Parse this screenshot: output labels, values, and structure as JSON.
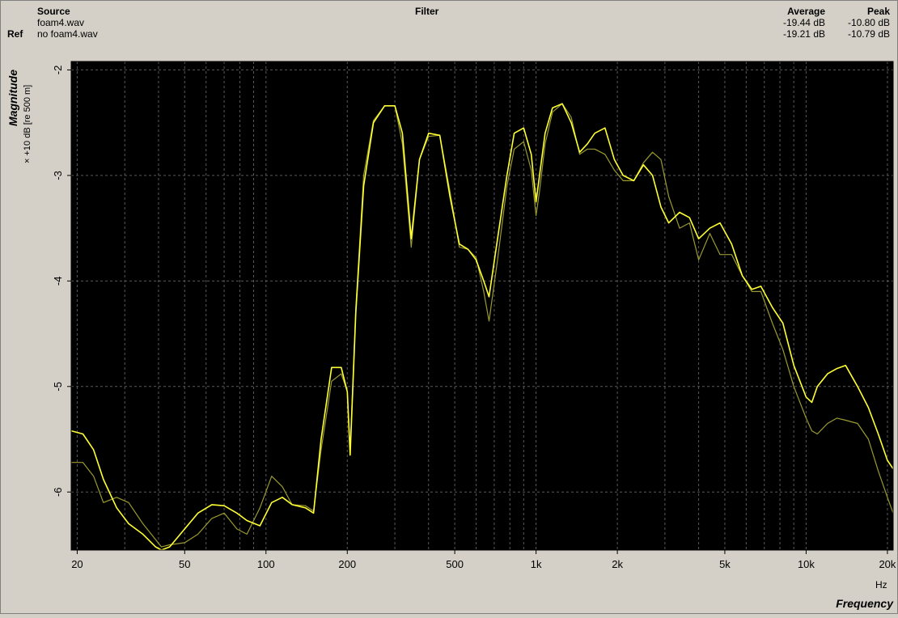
{
  "header": {
    "source_label": "Source",
    "ref_label": "Ref",
    "filter_label": "Filter",
    "average_label": "Average",
    "peak_label": "Peak",
    "source_file": "foam4.wav",
    "ref_file": "no foam4.wav",
    "source_average": "-19.44 dB",
    "source_peak": "-10.80 dB",
    "ref_average": "-19.21 dB",
    "ref_peak": "-10.79 dB"
  },
  "y_axis": {
    "title": "Magnitude",
    "unit": "× +10 dB [re 500 m]"
  },
  "x_axis": {
    "title": "Frequency",
    "unit": "Hz"
  },
  "colors": {
    "background": "#d4d0c8",
    "plot_background": "#000000",
    "grid": "#5a5a5a",
    "source_line": "#ffff33",
    "ref_line": "#9a9a30"
  },
  "chart_data": {
    "type": "line",
    "xscale": "log",
    "xlim": [
      19,
      21000
    ],
    "ylim": [
      -6.55,
      -1.92
    ],
    "grid": true,
    "xticks": [
      20,
      50,
      100,
      200,
      500,
      1000,
      2000,
      5000,
      10000,
      20000
    ],
    "xticklabels": [
      "20",
      "50",
      "100",
      "200",
      "500",
      "1k",
      "2k",
      "5k",
      "10k",
      "20k"
    ],
    "yticks": [
      -2,
      -3,
      -4,
      -5,
      -6
    ],
    "yticklabels": [
      "-2",
      "-3",
      "-4",
      "-5",
      "-6"
    ],
    "series": [
      {
        "name": "foam4.wav",
        "x": [
          19,
          21,
          23,
          25,
          28,
          31,
          35,
          39,
          41,
          44,
          50,
          56,
          63,
          70,
          78,
          85,
          95,
          105,
          115,
          125,
          140,
          150,
          160,
          175,
          190,
          200,
          205,
          215,
          230,
          250,
          275,
          300,
          320,
          345,
          370,
          400,
          440,
          480,
          520,
          560,
          600,
          640,
          670,
          720,
          780,
          830,
          900,
          960,
          1000,
          1030,
          1080,
          1150,
          1250,
          1350,
          1450,
          1550,
          1650,
          1800,
          1950,
          2100,
          2300,
          2500,
          2700,
          2900,
          3100,
          3400,
          3700,
          4000,
          4400,
          4800,
          5300,
          5800,
          6300,
          6800,
          7500,
          8200,
          9000,
          10000,
          10500,
          11000,
          12000,
          13000,
          14000,
          15500,
          17000,
          18500,
          20000,
          21000
        ],
        "y": [
          -5.42,
          -5.45,
          -5.6,
          -5.88,
          -6.15,
          -6.3,
          -6.4,
          -6.52,
          -6.55,
          -6.52,
          -6.35,
          -6.2,
          -6.12,
          -6.13,
          -6.2,
          -6.27,
          -6.32,
          -6.1,
          -6.05,
          -6.12,
          -6.15,
          -6.2,
          -5.5,
          -4.82,
          -4.82,
          -5.05,
          -5.65,
          -4.3,
          -3.1,
          -2.5,
          -2.34,
          -2.34,
          -2.6,
          -3.6,
          -2.85,
          -2.6,
          -2.62,
          -3.2,
          -3.65,
          -3.7,
          -3.8,
          -4.0,
          -4.15,
          -3.6,
          -3.0,
          -2.6,
          -2.55,
          -2.8,
          -3.25,
          -3.0,
          -2.6,
          -2.36,
          -2.32,
          -2.5,
          -2.78,
          -2.7,
          -2.6,
          -2.55,
          -2.85,
          -3.0,
          -3.05,
          -2.9,
          -3.0,
          -3.3,
          -3.45,
          -3.35,
          -3.4,
          -3.6,
          -3.5,
          -3.45,
          -3.65,
          -3.95,
          -4.08,
          -4.05,
          -4.25,
          -4.4,
          -4.8,
          -5.1,
          -5.15,
          -5.0,
          -4.88,
          -4.83,
          -4.8,
          -5.0,
          -5.2,
          -5.45,
          -5.7,
          -5.78
        ]
      },
      {
        "name": "no foam4.wav",
        "x": [
          19,
          21,
          23,
          25,
          28,
          31,
          35,
          39,
          41,
          44,
          50,
          56,
          63,
          70,
          78,
          85,
          95,
          105,
          115,
          125,
          140,
          150,
          160,
          175,
          190,
          200,
          205,
          215,
          230,
          250,
          275,
          300,
          320,
          345,
          370,
          400,
          440,
          480,
          520,
          560,
          600,
          640,
          670,
          720,
          780,
          830,
          900,
          960,
          1000,
          1030,
          1080,
          1150,
          1250,
          1350,
          1450,
          1550,
          1650,
          1800,
          1950,
          2100,
          2300,
          2500,
          2700,
          2900,
          3100,
          3400,
          3700,
          4000,
          4400,
          4800,
          5300,
          5800,
          6300,
          6800,
          7500,
          8200,
          9000,
          10000,
          10500,
          11000,
          12000,
          13000,
          14000,
          15500,
          17000,
          18500,
          20000,
          21000
        ],
        "y": [
          -5.72,
          -5.72,
          -5.85,
          -6.1,
          -6.05,
          -6.1,
          -6.3,
          -6.45,
          -6.52,
          -6.5,
          -6.48,
          -6.4,
          -6.25,
          -6.2,
          -6.35,
          -6.4,
          -6.15,
          -5.85,
          -5.95,
          -6.12,
          -6.13,
          -6.18,
          -5.6,
          -4.95,
          -4.88,
          -5.05,
          -5.6,
          -4.25,
          -3.0,
          -2.48,
          -2.34,
          -2.34,
          -2.7,
          -3.68,
          -2.85,
          -2.63,
          -2.62,
          -3.15,
          -3.68,
          -3.7,
          -3.78,
          -4.1,
          -4.38,
          -3.8,
          -3.1,
          -2.75,
          -2.68,
          -2.95,
          -3.38,
          -3.15,
          -2.7,
          -2.4,
          -2.32,
          -2.45,
          -2.8,
          -2.75,
          -2.75,
          -2.8,
          -2.95,
          -3.05,
          -3.05,
          -2.88,
          -2.78,
          -2.85,
          -3.2,
          -3.5,
          -3.45,
          -3.8,
          -3.55,
          -3.75,
          -3.75,
          -3.95,
          -4.1,
          -4.1,
          -4.4,
          -4.65,
          -5.0,
          -5.3,
          -5.42,
          -5.45,
          -5.35,
          -5.3,
          -5.32,
          -5.35,
          -5.5,
          -5.8,
          -6.05,
          -6.2
        ]
      }
    ]
  }
}
